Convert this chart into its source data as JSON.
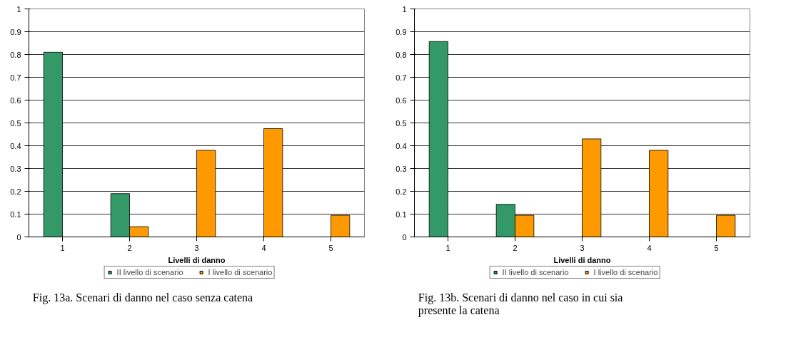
{
  "chart_data": [
    {
      "type": "bar",
      "categories": [
        "1",
        "2",
        "3",
        "4",
        "5"
      ],
      "xlabel": "Livelli di danno",
      "ylim": [
        0,
        1
      ],
      "yticks": [
        0,
        0.1,
        0.2,
        0.3,
        0.4,
        0.5,
        0.6,
        0.7,
        0.8,
        0.9,
        1
      ],
      "grid": "y",
      "legend": "bottom",
      "series": [
        {
          "name": "II livello di scenario",
          "color": "#339966",
          "values": [
            0.81,
            0.19,
            null,
            null,
            null
          ]
        },
        {
          "name": "I livello di scenario",
          "color": "#ff9900",
          "values": [
            null,
            0.045,
            0.38,
            0.475,
            0.095
          ]
        }
      ],
      "annotations": [
        "Fig. 13a. Scenari di danno nel caso senza catena"
      ]
    },
    {
      "type": "bar",
      "categories": [
        "1",
        "2",
        "3",
        "4",
        "5"
      ],
      "xlabel": "Livelli di danno",
      "ylim": [
        0,
        1
      ],
      "yticks": [
        0,
        0.1,
        0.2,
        0.3,
        0.4,
        0.5,
        0.6,
        0.7,
        0.8,
        0.9,
        1
      ],
      "grid": "y",
      "legend": "bottom",
      "series": [
        {
          "name": "II livello di scenario",
          "color": "#339966",
          "values": [
            0.857,
            0.143,
            null,
            null,
            null
          ]
        },
        {
          "name": "I livello di scenario",
          "color": "#ff9900",
          "values": [
            null,
            0.095,
            0.43,
            0.38,
            0.095
          ]
        }
      ],
      "annotations": [
        "Fig. 13b. Scenari di danno nel caso in cui sia presente la catena"
      ]
    }
  ]
}
